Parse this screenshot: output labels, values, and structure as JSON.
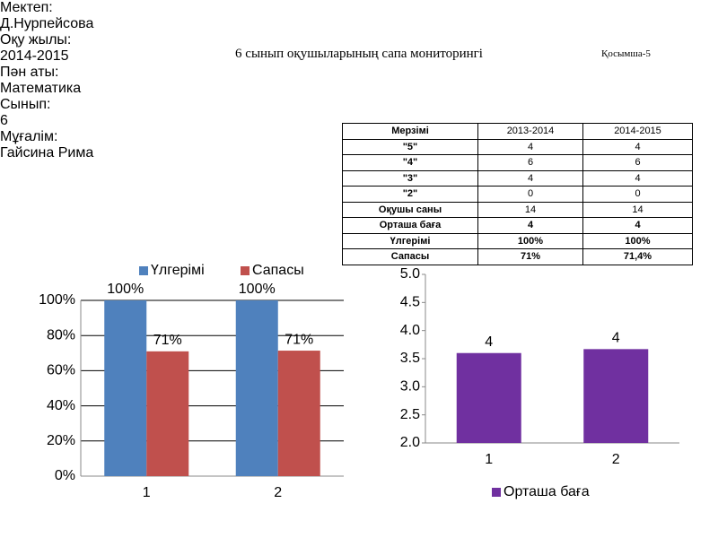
{
  "header": {
    "title": "6 сынып оқушыларының сапа мониторингі",
    "appendix": "Қосымша-5"
  },
  "info": [
    {
      "label": "Мектеп:",
      "value": "Д.Нурпейсова"
    },
    {
      "label": "Оқу жылы:",
      "value": "2014-2015"
    },
    {
      "label": "Пән аты:",
      "value": "Математика"
    },
    {
      "label": "Сынып:",
      "value": "6"
    },
    {
      "label": "Мұғалім:",
      "value": "Гайсина Рима"
    }
  ],
  "table": {
    "header": [
      "Мерзімі",
      "2013-2014",
      "2014-2015"
    ],
    "rows": [
      [
        "\"5\"",
        "4",
        "4"
      ],
      [
        "\"4\"",
        "6",
        "6"
      ],
      [
        "\"3\"",
        "4",
        "4"
      ],
      [
        "\"2\"",
        "0",
        "0"
      ],
      [
        "Оқушы саны",
        "14",
        "14"
      ],
      [
        "Орташа баға",
        "4",
        "4"
      ],
      [
        "Үлгерімі",
        "100%",
        "100%"
      ],
      [
        "Сапасы",
        "71%",
        "71,4%"
      ]
    ]
  },
  "chart_data": [
    {
      "type": "bar",
      "categories": [
        "1",
        "2"
      ],
      "series": [
        {
          "name": "Үлгерімі",
          "color": "#4f81bd",
          "values": [
            100,
            100
          ],
          "value_labels": [
            "100%",
            "100%"
          ]
        },
        {
          "name": "Сапасы",
          "color": "#c0504d",
          "values": [
            71,
            71.4
          ],
          "value_labels": [
            "71%",
            "71%"
          ]
        }
      ],
      "ylim": [
        0,
        100
      ],
      "yticks": [
        {
          "value": 0,
          "label": "0%"
        },
        {
          "value": 20,
          "label": "20%"
        },
        {
          "value": 40,
          "label": "40%"
        },
        {
          "value": 60,
          "label": "60%"
        },
        {
          "value": 80,
          "label": "80%"
        },
        {
          "value": 100,
          "label": "100%"
        }
      ],
      "grid": true,
      "legend": "top"
    },
    {
      "type": "bar",
      "categories": [
        "1",
        "2"
      ],
      "series": [
        {
          "name": "Орташа баға",
          "color": "#7030a0",
          "values": [
            3.6,
            3.67
          ],
          "value_labels": [
            "4",
            "4"
          ]
        }
      ],
      "ylim": [
        2,
        5
      ],
      "yticks": [
        {
          "value": 2,
          "label": "2.0"
        },
        {
          "value": 2.5,
          "label": "2.5"
        },
        {
          "value": 3,
          "label": "3.0"
        },
        {
          "value": 3.5,
          "label": "3.5"
        },
        {
          "value": 4,
          "label": "4.0"
        },
        {
          "value": 4.5,
          "label": "4.5"
        },
        {
          "value": 5,
          "label": "5.0"
        }
      ],
      "grid": false,
      "legend": "bottom"
    }
  ]
}
